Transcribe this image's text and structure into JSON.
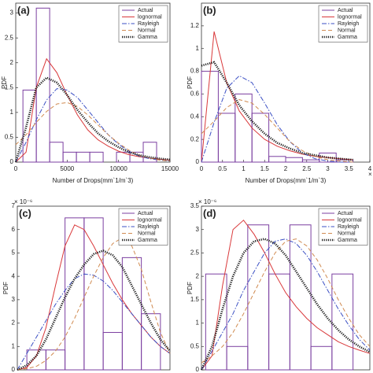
{
  "chart_data": [
    {
      "type": "histogram",
      "panel_label": "(a)",
      "xlabel": "Number of Drops(mm`1/m`3)",
      "ylabel": "PDF",
      "xlim": [
        0,
        15000
      ],
      "xticks": [
        0,
        5000,
        10000,
        15000
      ],
      "ylim": [
        0,
        3.2
      ],
      "yticks": [
        0,
        0.5,
        1,
        1.5,
        2,
        2.5,
        3
      ],
      "histogram": {
        "name": "Actual",
        "color": "#7b3fa0",
        "bins": [
          700,
          2000,
          3300,
          4600,
          5900,
          7200,
          8500,
          9800,
          11100,
          12400,
          13700
        ],
        "counts": [
          1.45,
          3.1,
          0.4,
          0.2,
          0.2,
          0.2,
          0,
          0.2,
          0.2,
          0.4
        ]
      },
      "x": [
        0,
        1000,
        2000,
        3000,
        4000,
        5000,
        6000,
        7000,
        8000,
        9000,
        10000,
        11000,
        12000,
        13000,
        14000,
        15000
      ],
      "series": [
        {
          "name": "lognormal",
          "color": "#d9383a",
          "style": "solid",
          "values": [
            0,
            0.2,
            1.5,
            2.08,
            1.8,
            1.35,
            0.95,
            0.65,
            0.45,
            0.32,
            0.22,
            0.15,
            0.11,
            0.08,
            0.06,
            0.04
          ]
        },
        {
          "name": "Rayleigh",
          "color": "#3b4fc4",
          "style": "dashdot",
          "values": [
            0,
            0.4,
            0.85,
            1.25,
            1.48,
            1.45,
            1.3,
            1.05,
            0.8,
            0.55,
            0.36,
            0.22,
            0.12,
            0.07,
            0.04,
            0.02
          ]
        },
        {
          "name": "Normal",
          "color": "#d08a50",
          "style": "dashed",
          "values": [
            0.35,
            0.55,
            0.8,
            1.02,
            1.17,
            1.2,
            1.12,
            0.95,
            0.75,
            0.55,
            0.38,
            0.24,
            0.14,
            0.08,
            0.04,
            0.02
          ]
        },
        {
          "name": "Gamma",
          "color": "#222222",
          "style": "dotted",
          "values": [
            0,
            0.7,
            1.5,
            1.7,
            1.6,
            1.35,
            1.05,
            0.8,
            0.58,
            0.42,
            0.3,
            0.2,
            0.14,
            0.1,
            0.07,
            0.05
          ]
        }
      ]
    },
    {
      "type": "histogram",
      "panel_label": "(b)",
      "xlabel": "Number of Drops(mm`1/m`3)",
      "ylabel": "PDF",
      "x_note": "× 10⁵",
      "xlim": [
        0,
        4
      ],
      "xticks": [
        0,
        0.5,
        1,
        1.5,
        2,
        2.5,
        3,
        3.5,
        4
      ],
      "ylim": [
        0,
        1.4
      ],
      "yticks": [
        0,
        0.2,
        0.4,
        0.6,
        0.8,
        1,
        1.2
      ],
      "histogram": {
        "name": "Actual",
        "color": "#7b3fa0",
        "bins": [
          0,
          0.4,
          0.8,
          1.2,
          1.6,
          2.0,
          2.4,
          2.8,
          3.2,
          3.6
        ],
        "counts": [
          0.8,
          0.43,
          0.6,
          0.43,
          0.05,
          0.04,
          0.02,
          0.08,
          0.02
        ]
      },
      "x": [
        0,
        0.3,
        0.6,
        0.9,
        1.2,
        1.5,
        1.8,
        2.1,
        2.4,
        2.7,
        3,
        3.3,
        3.6
      ],
      "series": [
        {
          "name": "lognormal",
          "color": "#d9383a",
          "style": "solid",
          "values": [
            0,
            1.15,
            0.7,
            0.45,
            0.3,
            0.2,
            0.14,
            0.1,
            0.07,
            0.05,
            0.04,
            0.03,
            0.02
          ]
        },
        {
          "name": "Rayleigh",
          "color": "#3b4fc4",
          "style": "dashdot",
          "values": [
            0,
            0.35,
            0.65,
            0.76,
            0.7,
            0.52,
            0.33,
            0.18,
            0.08,
            0.03,
            0.01,
            0,
            0
          ]
        },
        {
          "name": "Normal",
          "color": "#d08a50",
          "style": "dashed",
          "values": [
            0.25,
            0.36,
            0.48,
            0.55,
            0.52,
            0.42,
            0.3,
            0.18,
            0.1,
            0.05,
            0.02,
            0.01,
            0
          ]
        },
        {
          "name": "Gamma",
          "color": "#222222",
          "style": "dotted",
          "values": [
            0.85,
            0.88,
            0.7,
            0.5,
            0.36,
            0.25,
            0.17,
            0.12,
            0.08,
            0.06,
            0.04,
            0.03,
            0.02
          ]
        }
      ]
    },
    {
      "type": "histogram",
      "panel_label": "(c)",
      "ylabel": "PDF",
      "y_note": "× 10⁻⁶",
      "xlim": [
        0,
        8
      ],
      "ylim": [
        0,
        7
      ],
      "yticks": [
        0,
        1,
        2,
        3,
        4,
        5,
        6,
        7
      ],
      "histogram": {
        "name": "Actual",
        "color": "#7b3fa0",
        "bins": [
          0.5,
          1.5,
          2.5,
          3.5,
          4.5,
          5.5,
          6.5,
          7.5
        ],
        "counts": [
          0.85,
          0.85,
          6.5,
          6.5,
          1.6,
          4.8,
          2.4
        ]
      },
      "x": [
        0,
        0.5,
        1,
        1.5,
        2,
        2.5,
        3,
        3.5,
        4,
        4.5,
        5,
        5.5,
        6,
        6.5,
        7,
        7.5,
        8
      ],
      "series": [
        {
          "name": "lognormal",
          "color": "#d9383a",
          "style": "solid",
          "values": [
            0,
            0.1,
            0.6,
            1.8,
            3.6,
            5.3,
            6.2,
            6.0,
            5.3,
            4.5,
            3.7,
            3.0,
            2.4,
            1.9,
            1.4,
            1.0,
            0.7
          ]
        },
        {
          "name": "Rayleigh",
          "color": "#3b4fc4",
          "style": "dashdot",
          "values": [
            0,
            0.7,
            1.4,
            2.1,
            2.8,
            3.4,
            3.9,
            4.1,
            4.05,
            3.8,
            3.4,
            2.9,
            2.4,
            1.9,
            1.4,
            1.0,
            0.7
          ]
        },
        {
          "name": "Normal",
          "color": "#d08a50",
          "style": "dashed",
          "values": [
            0,
            0.05,
            0.15,
            0.4,
            0.8,
            1.4,
            2.2,
            3.1,
            4.0,
            4.8,
            5.4,
            5.65,
            5.3,
            4.3,
            2.9,
            1.6,
            0.7
          ]
        },
        {
          "name": "Gamma",
          "color": "#222222",
          "style": "dotted",
          "values": [
            0,
            0.2,
            0.6,
            1.3,
            2.2,
            3.1,
            3.9,
            4.5,
            4.95,
            5.1,
            4.9,
            4.4,
            3.6,
            2.8,
            2.0,
            1.3,
            0.8
          ]
        }
      ]
    },
    {
      "type": "histogram",
      "panel_label": "(d)",
      "ylabel": "PDF",
      "y_note": "× 10⁻⁶",
      "xlim": [
        0,
        8
      ],
      "ylim": [
        0,
        3.5
      ],
      "yticks": [
        0,
        0.5,
        1,
        1.5,
        2,
        2.5,
        3,
        3.5
      ],
      "histogram": {
        "name": "Actual",
        "color": "#7b3fa0",
        "bins": [
          0.2,
          1.2,
          2.2,
          3.2,
          4.2,
          5.2,
          6.2,
          7.2
        ],
        "counts": [
          2.05,
          0.5,
          3.1,
          2.05,
          3.1,
          0.5,
          2.05
        ]
      },
      "x": [
        0,
        0.5,
        1,
        1.5,
        2,
        2.5,
        3,
        3.5,
        4,
        4.5,
        5,
        5.5,
        6,
        6.5,
        7,
        7.5,
        8
      ],
      "series": [
        {
          "name": "lognormal",
          "color": "#d9383a",
          "style": "solid",
          "values": [
            0,
            0.3,
            1.8,
            3.0,
            3.2,
            2.9,
            2.5,
            2.05,
            1.65,
            1.35,
            1.1,
            0.9,
            0.75,
            0.6,
            0.5,
            0.42,
            0.35
          ]
        },
        {
          "name": "Rayleigh",
          "color": "#3b4fc4",
          "style": "dashdot",
          "values": [
            0,
            0.4,
            0.8,
            1.2,
            1.7,
            2.1,
            2.5,
            2.75,
            2.8,
            2.7,
            2.45,
            2.1,
            1.7,
            1.3,
            0.95,
            0.65,
            0.42
          ]
        },
        {
          "name": "Normal",
          "color": "#d08a50",
          "style": "dashed",
          "values": [
            0.15,
            0.3,
            0.5,
            0.8,
            1.2,
            1.65,
            2.1,
            2.5,
            2.75,
            2.8,
            2.65,
            2.35,
            1.95,
            1.5,
            1.1,
            0.75,
            0.5
          ]
        },
        {
          "name": "Gamma",
          "color": "#222222",
          "style": "dotted",
          "values": [
            0,
            0.5,
            1.3,
            2.0,
            2.5,
            2.75,
            2.8,
            2.7,
            2.45,
            2.1,
            1.75,
            1.4,
            1.1,
            0.85,
            0.65,
            0.5,
            0.38
          ]
        }
      ]
    }
  ]
}
